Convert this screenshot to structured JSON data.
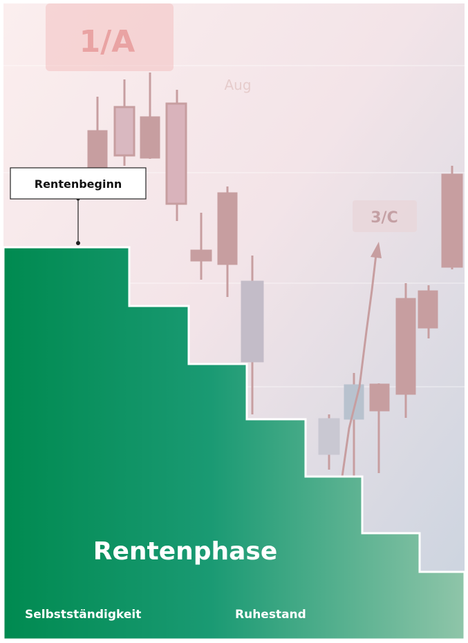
{
  "background": {
    "labels": [
      "1/A",
      "Aug",
      "3/C"
    ]
  },
  "marker": {
    "label": "Rentenbeginn"
  },
  "phase": {
    "title": "Rentenphase",
    "left_label": "Selbstständigkeit",
    "right_label": "Ruhestand"
  }
}
